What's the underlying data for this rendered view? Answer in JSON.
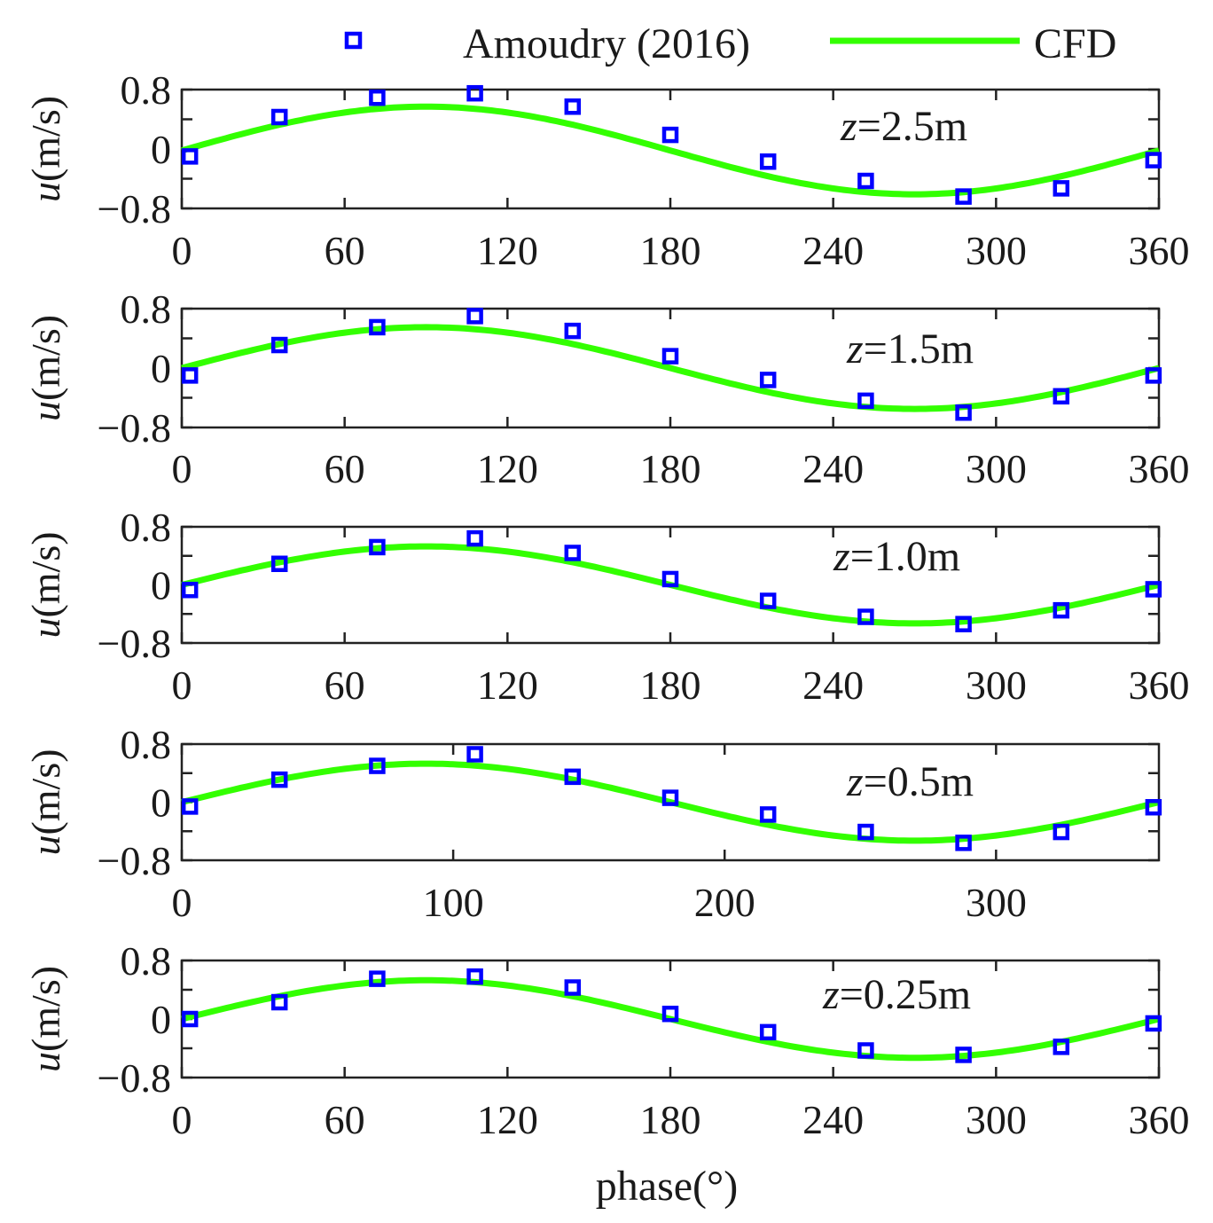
{
  "chart_data": {
    "type": "line",
    "xlabel": "phase(°)",
    "ylabel": "u(m/s)",
    "ylabel_italic_part": "u",
    "ylabel_rest": "(m/s)",
    "legend": {
      "placement": "top",
      "entries": [
        {
          "name": "Amoudry (2016)",
          "marker": "square-open",
          "color": "#0000ff"
        },
        {
          "name": "CFD",
          "marker": "line",
          "color": "#33ff00"
        }
      ]
    },
    "colors": {
      "data": "#0000ff",
      "cfd": "#33ff00",
      "axes": "#222222"
    },
    "panels": [
      {
        "z_var": "z",
        "z_text": "=2.5m",
        "xlim": [
          0,
          360
        ],
        "xticks": [
          0,
          60,
          120,
          180,
          240,
          300,
          360
        ],
        "xtick_labels": [
          "0",
          "60",
          "120",
          "180",
          "240",
          "300",
          "360"
        ],
        "ylim": [
          -0.8,
          0.8
        ],
        "yticks": [
          -0.8,
          -0.4,
          0,
          0.4,
          0.8
        ],
        "ytick_labels": [
          "−0.8",
          "0",
          "0.8"
        ],
        "ytick_label_values": [
          -0.8,
          0,
          0.8
        ],
        "data_series": {
          "name": "Amoudry (2016)",
          "x": [
            3,
            36,
            72,
            108,
            144,
            180,
            216,
            252,
            288,
            324,
            358
          ],
          "y": [
            -0.1,
            0.43,
            0.69,
            0.75,
            0.57,
            0.19,
            -0.17,
            -0.43,
            -0.64,
            -0.53,
            -0.15
          ]
        },
        "cfd_series": {
          "name": "CFD",
          "amplitude": 0.59,
          "offset": -0.02,
          "x_range": [
            0,
            360
          ],
          "form": "A*sin(x)+offset"
        }
      },
      {
        "z_var": "z",
        "z_text": "=1.5m",
        "xlim": [
          0,
          360
        ],
        "xticks": [
          0,
          60,
          120,
          180,
          240,
          300,
          360
        ],
        "xtick_labels": [
          "0",
          "60",
          "120",
          "180",
          "240",
          "300",
          "360"
        ],
        "ylim": [
          -0.8,
          0.8
        ],
        "yticks": [
          -0.8,
          -0.4,
          0,
          0.4,
          0.8
        ],
        "ytick_labels": [
          "−0.8",
          "0",
          "0.8"
        ],
        "ytick_label_values": [
          -0.8,
          0,
          0.8
        ],
        "data_series": {
          "name": "Amoudry (2016)",
          "x": [
            3,
            36,
            72,
            108,
            144,
            180,
            216,
            252,
            288,
            324,
            358
          ],
          "y": [
            -0.1,
            0.31,
            0.55,
            0.7,
            0.5,
            0.16,
            -0.16,
            -0.44,
            -0.6,
            -0.38,
            -0.1
          ]
        },
        "cfd_series": {
          "name": "CFD",
          "amplitude": 0.55,
          "offset": 0.0,
          "x_range": [
            0,
            360
          ],
          "form": "A*sin(x)+offset"
        }
      },
      {
        "z_var": "z",
        "z_text": "=1.0m",
        "xlim": [
          0,
          360
        ],
        "xticks": [
          0,
          60,
          120,
          180,
          240,
          300,
          360
        ],
        "xtick_labels": [
          "0",
          "60",
          "120",
          "180",
          "240",
          "300",
          "360"
        ],
        "ylim": [
          -0.8,
          0.8
        ],
        "yticks": [
          -0.8,
          -0.4,
          0,
          0.4,
          0.8
        ],
        "ytick_labels": [
          "−0.8",
          "0",
          "0.8"
        ],
        "ytick_label_values": [
          -0.8,
          0,
          0.8
        ],
        "data_series": {
          "name": "Amoudry (2016)",
          "x": [
            3,
            36,
            72,
            108,
            144,
            180,
            216,
            252,
            288,
            324,
            358
          ],
          "y": [
            -0.07,
            0.29,
            0.52,
            0.64,
            0.44,
            0.08,
            -0.22,
            -0.44,
            -0.54,
            -0.35,
            -0.06
          ]
        },
        "cfd_series": {
          "name": "CFD",
          "amplitude": 0.53,
          "offset": 0.0,
          "x_range": [
            0,
            360
          ],
          "form": "A*sin(x)+offset"
        }
      },
      {
        "z_var": "z",
        "z_text": "=0.5m",
        "xlim": [
          0,
          360
        ],
        "xticks": [
          0,
          100,
          200,
          300
        ],
        "xtick_labels": [
          "0",
          "100",
          "200",
          "300"
        ],
        "ylim": [
          -0.8,
          0.8
        ],
        "yticks": [
          -0.8,
          -0.4,
          0,
          0.4,
          0.8
        ],
        "ytick_labels": [
          "−0.8",
          "0",
          "0.8"
        ],
        "ytick_label_values": [
          -0.8,
          0,
          0.8
        ],
        "data_series": {
          "name": "Amoudry (2016)",
          "x": [
            3,
            36,
            72,
            108,
            144,
            180,
            216,
            252,
            288,
            324,
            358
          ],
          "y": [
            -0.06,
            0.31,
            0.5,
            0.66,
            0.35,
            0.06,
            -0.17,
            -0.41,
            -0.56,
            -0.41,
            -0.07
          ]
        },
        "cfd_series": {
          "name": "CFD",
          "amplitude": 0.53,
          "offset": 0.0,
          "x_range": [
            0,
            360
          ],
          "form": "A*sin(x)+offset"
        }
      },
      {
        "z_var": "z",
        "z_text": "=0.25m",
        "xlim": [
          0,
          360
        ],
        "xticks": [
          0,
          60,
          120,
          180,
          240,
          300,
          360
        ],
        "xtick_labels": [
          "0",
          "60",
          "120",
          "180",
          "240",
          "300",
          "360"
        ],
        "ylim": [
          -0.8,
          0.8
        ],
        "yticks": [
          -0.8,
          -0.4,
          0,
          0.4,
          0.8
        ],
        "ytick_labels": [
          "−0.8",
          "0",
          "0.8"
        ],
        "ytick_label_values": [
          -0.8,
          0,
          0.8
        ],
        "data_series": {
          "name": "Amoudry (2016)",
          "x": [
            3,
            36,
            72,
            108,
            144,
            180,
            216,
            252,
            288,
            324,
            358
          ],
          "y": [
            0.0,
            0.23,
            0.55,
            0.58,
            0.43,
            0.07,
            -0.18,
            -0.43,
            -0.49,
            -0.38,
            -0.06
          ]
        },
        "cfd_series": {
          "name": "CFD",
          "amplitude": 0.53,
          "offset": 0.0,
          "x_range": [
            0,
            360
          ],
          "form": "A*sin(x)+offset"
        }
      }
    ]
  }
}
